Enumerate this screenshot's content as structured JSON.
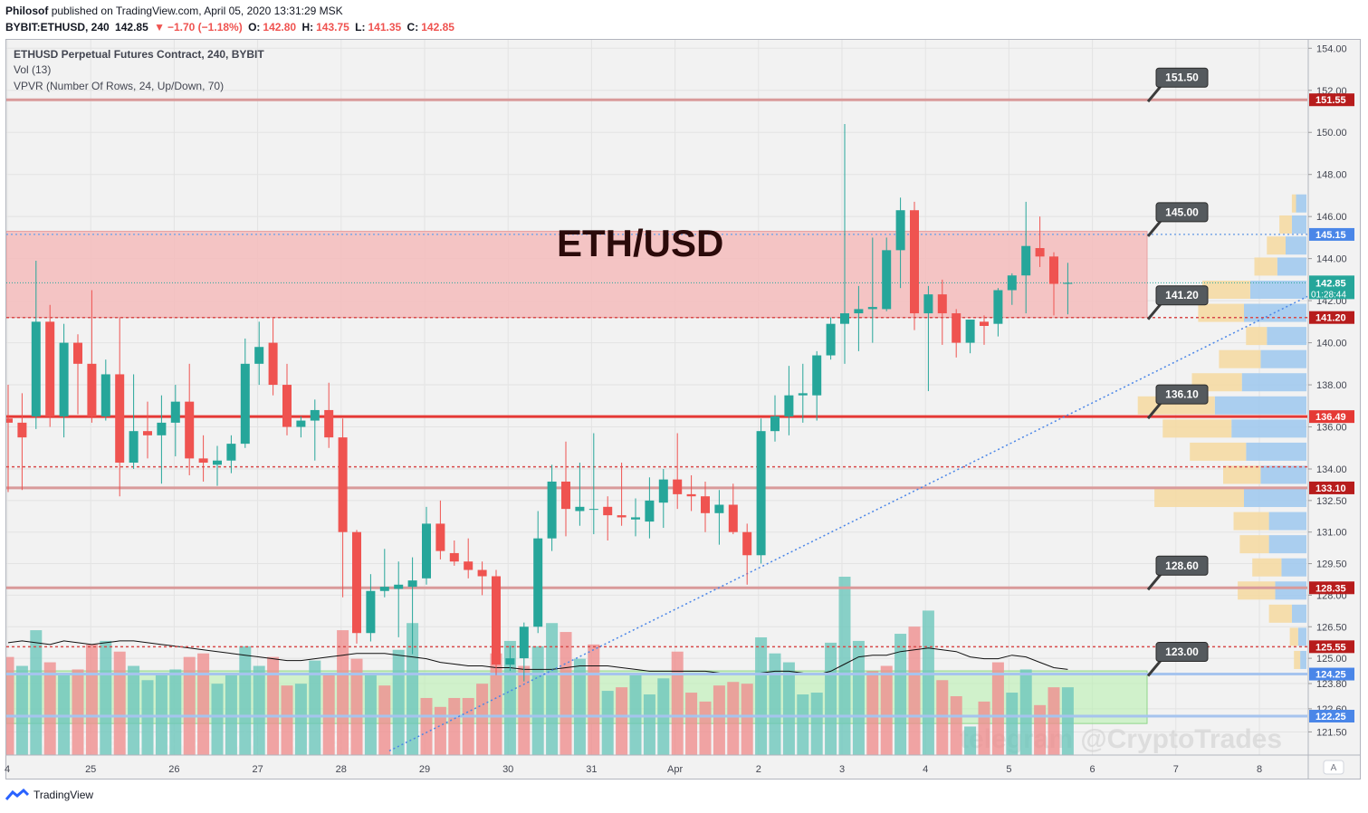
{
  "header": {
    "author": "Philosof",
    "published_text": "published on TradingView.com, April 05, 2020 13:31:29 MSK",
    "symbol": "BYBIT:ETHUSD, 240",
    "last": "142.85",
    "change_arrow": "▼",
    "change": "−1.70 (−1.18%)",
    "o_label": "O:",
    "o": "142.80",
    "h_label": "H:",
    "h": "143.75",
    "l_label": "L:",
    "l": "141.35",
    "c_label": "C:",
    "c": "142.85"
  },
  "legend": {
    "title": "ETHUSD Perpetual Futures Contract, 240, BYBIT",
    "vol": "Vol (13)",
    "vpvr": "VPVR (Number Of Rows, 24, Up/Down, 70)"
  },
  "watermark_title": "ETH/USD",
  "watermark_telegram": "telegram @CryptoTrades",
  "footer": {
    "brand": "TradingView"
  },
  "colors": {
    "up": "#26a69a",
    "down": "#ef5350",
    "zone": "#f4bcbc",
    "volume_zone": "#b9f0b0",
    "axis_red": "#b71c1c",
    "axis_blue": "#4a86e8"
  },
  "chart_data": {
    "type": "candlestick",
    "title": "ETHUSD Perpetual Futures Contract, 240, BYBIT",
    "x_ticks": [
      "4",
      "25",
      "26",
      "27",
      "28",
      "29",
      "30",
      "31",
      "Apr",
      "2",
      "3",
      "4",
      "5",
      "6",
      "7",
      "8"
    ],
    "y_ticks": [
      "154.00",
      "152.00",
      "150.00",
      "148.00",
      "146.00",
      "144.00",
      "142.00",
      "140.00",
      "138.00",
      "136.00",
      "134.00",
      "132.50",
      "131.00",
      "129.50",
      "128.00",
      "126.50",
      "125.00",
      "123.80",
      "122.60",
      "121.50"
    ],
    "y_range": [
      120.4,
      154.4
    ],
    "candles": [
      {
        "o": 136.4,
        "h": 138.0,
        "l": 132.9,
        "c": 136.2
      },
      {
        "o": 136.2,
        "h": 137.6,
        "l": 133.0,
        "c": 135.5
      },
      {
        "o": 136.5,
        "h": 143.9,
        "l": 135.9,
        "c": 141.0
      },
      {
        "o": 141.0,
        "h": 141.8,
        "l": 136.0,
        "c": 136.5
      },
      {
        "o": 136.5,
        "h": 140.9,
        "l": 135.5,
        "c": 140.0
      },
      {
        "o": 140.0,
        "h": 140.4,
        "l": 136.6,
        "c": 139.0
      },
      {
        "o": 139.0,
        "h": 142.5,
        "l": 136.2,
        "c": 136.5
      },
      {
        "o": 136.5,
        "h": 139.2,
        "l": 136.3,
        "c": 138.5
      },
      {
        "o": 138.5,
        "h": 141.2,
        "l": 132.7,
        "c": 134.3
      },
      {
        "o": 134.3,
        "h": 138.5,
        "l": 134.0,
        "c": 135.8
      },
      {
        "o": 135.8,
        "h": 137.2,
        "l": 134.5,
        "c": 135.6
      },
      {
        "o": 135.6,
        "h": 137.5,
        "l": 133.3,
        "c": 136.2
      },
      {
        "o": 136.2,
        "h": 138.0,
        "l": 134.6,
        "c": 137.2
      },
      {
        "o": 137.2,
        "h": 139.0,
        "l": 133.7,
        "c": 134.5
      },
      {
        "o": 134.5,
        "h": 135.6,
        "l": 133.4,
        "c": 134.3
      },
      {
        "o": 134.2,
        "h": 135.1,
        "l": 133.2,
        "c": 134.4
      },
      {
        "o": 134.4,
        "h": 135.6,
        "l": 133.8,
        "c": 135.2
      },
      {
        "o": 135.2,
        "h": 140.2,
        "l": 135.0,
        "c": 139.0
      },
      {
        "o": 139.0,
        "h": 141.0,
        "l": 138.0,
        "c": 139.8
      },
      {
        "o": 140.0,
        "h": 141.2,
        "l": 137.5,
        "c": 138.0
      },
      {
        "o": 138.0,
        "h": 139.0,
        "l": 135.6,
        "c": 136.0
      },
      {
        "o": 136.0,
        "h": 136.5,
        "l": 135.5,
        "c": 136.3
      },
      {
        "o": 136.3,
        "h": 137.3,
        "l": 134.4,
        "c": 136.8
      },
      {
        "o": 136.8,
        "h": 138.1,
        "l": 135.0,
        "c": 135.5
      },
      {
        "o": 135.5,
        "h": 136.4,
        "l": 127.9,
        "c": 131.0
      },
      {
        "o": 131.0,
        "h": 131.1,
        "l": 125.7,
        "c": 126.2
      },
      {
        "o": 126.2,
        "h": 129.0,
        "l": 125.8,
        "c": 128.2
      },
      {
        "o": 128.2,
        "h": 130.2,
        "l": 127.9,
        "c": 128.4
      },
      {
        "o": 128.3,
        "h": 129.6,
        "l": 126.0,
        "c": 128.5
      },
      {
        "o": 128.4,
        "h": 129.8,
        "l": 125.2,
        "c": 128.7
      },
      {
        "o": 128.8,
        "h": 132.2,
        "l": 128.5,
        "c": 131.4
      },
      {
        "o": 131.4,
        "h": 132.5,
        "l": 129.7,
        "c": 130.1
      },
      {
        "o": 130.0,
        "h": 130.6,
        "l": 129.4,
        "c": 129.6
      },
      {
        "o": 129.6,
        "h": 130.7,
        "l": 128.8,
        "c": 129.2
      },
      {
        "o": 129.2,
        "h": 129.6,
        "l": 128.0,
        "c": 128.9
      },
      {
        "o": 128.9,
        "h": 129.2,
        "l": 124.2,
        "c": 124.7
      },
      {
        "o": 124.7,
        "h": 125.6,
        "l": 124.4,
        "c": 125.0
      },
      {
        "o": 125.0,
        "h": 126.7,
        "l": 123.9,
        "c": 126.5
      },
      {
        "o": 126.5,
        "h": 132.0,
        "l": 126.2,
        "c": 130.7
      },
      {
        "o": 130.7,
        "h": 134.2,
        "l": 130.1,
        "c": 133.4
      },
      {
        "o": 133.4,
        "h": 135.3,
        "l": 130.8,
        "c": 132.1
      },
      {
        "o": 132.0,
        "h": 134.3,
        "l": 131.3,
        "c": 132.2
      },
      {
        "o": 132.1,
        "h": 135.7,
        "l": 130.9,
        "c": 132.1
      },
      {
        "o": 132.2,
        "h": 132.7,
        "l": 130.6,
        "c": 131.8
      },
      {
        "o": 131.8,
        "h": 134.3,
        "l": 131.3,
        "c": 131.7
      },
      {
        "o": 131.6,
        "h": 132.6,
        "l": 130.8,
        "c": 131.7
      },
      {
        "o": 131.5,
        "h": 133.6,
        "l": 130.7,
        "c": 132.5
      },
      {
        "o": 132.4,
        "h": 134.0,
        "l": 131.2,
        "c": 133.5
      },
      {
        "o": 133.5,
        "h": 135.7,
        "l": 132.1,
        "c": 132.8
      },
      {
        "o": 132.8,
        "h": 133.7,
        "l": 132.0,
        "c": 132.7
      },
      {
        "o": 132.7,
        "h": 133.4,
        "l": 131.0,
        "c": 131.9
      },
      {
        "o": 131.9,
        "h": 133.0,
        "l": 130.4,
        "c": 132.3
      },
      {
        "o": 132.3,
        "h": 133.3,
        "l": 130.9,
        "c": 131.0
      },
      {
        "o": 131.0,
        "h": 131.4,
        "l": 128.5,
        "c": 129.9
      },
      {
        "o": 129.9,
        "h": 136.4,
        "l": 129.5,
        "c": 135.8
      },
      {
        "o": 135.8,
        "h": 137.5,
        "l": 135.3,
        "c": 136.5
      },
      {
        "o": 136.5,
        "h": 138.9,
        "l": 135.6,
        "c": 137.5
      },
      {
        "o": 137.5,
        "h": 139.0,
        "l": 136.2,
        "c": 137.6
      },
      {
        "o": 137.5,
        "h": 139.6,
        "l": 136.3,
        "c": 139.4
      },
      {
        "o": 139.4,
        "h": 141.2,
        "l": 139.2,
        "c": 140.9
      },
      {
        "o": 140.9,
        "h": 150.4,
        "l": 139.0,
        "c": 141.4
      },
      {
        "o": 141.4,
        "h": 142.7,
        "l": 139.6,
        "c": 141.6
      },
      {
        "o": 141.6,
        "h": 145.0,
        "l": 140.0,
        "c": 141.7
      },
      {
        "o": 141.6,
        "h": 145.0,
        "l": 141.5,
        "c": 144.4
      },
      {
        "o": 144.4,
        "h": 146.9,
        "l": 142.6,
        "c": 146.3
      },
      {
        "o": 146.3,
        "h": 146.7,
        "l": 140.6,
        "c": 141.4
      },
      {
        "o": 141.4,
        "h": 142.7,
        "l": 137.7,
        "c": 142.3
      },
      {
        "o": 142.3,
        "h": 143.0,
        "l": 139.9,
        "c": 141.4
      },
      {
        "o": 141.4,
        "h": 141.6,
        "l": 139.3,
        "c": 140.0
      },
      {
        "o": 140.0,
        "h": 141.0,
        "l": 139.5,
        "c": 141.1
      },
      {
        "o": 141.0,
        "h": 141.3,
        "l": 139.9,
        "c": 140.8
      },
      {
        "o": 140.9,
        "h": 142.6,
        "l": 140.3,
        "c": 142.5
      },
      {
        "o": 142.5,
        "h": 143.3,
        "l": 141.8,
        "c": 143.2
      },
      {
        "o": 143.2,
        "h": 146.7,
        "l": 141.4,
        "c": 144.6
      },
      {
        "o": 144.5,
        "h": 146.0,
        "l": 143.6,
        "c": 144.1
      },
      {
        "o": 144.1,
        "h": 144.3,
        "l": 141.3,
        "c": 142.8
      },
      {
        "o": 142.8,
        "h": 143.8,
        "l": 141.35,
        "c": 142.85
      }
    ],
    "volume": [
      {
        "v": 0.55,
        "up": false
      },
      {
        "v": 0.5,
        "up": true
      },
      {
        "v": 0.7,
        "up": true
      },
      {
        "v": 0.52,
        "up": false
      },
      {
        "v": 0.45,
        "up": true
      },
      {
        "v": 0.48,
        "up": false
      },
      {
        "v": 0.62,
        "up": false
      },
      {
        "v": 0.64,
        "up": true
      },
      {
        "v": 0.58,
        "up": false
      },
      {
        "v": 0.5,
        "up": true
      },
      {
        "v": 0.42,
        "up": true
      },
      {
        "v": 0.46,
        "up": true
      },
      {
        "v": 0.48,
        "up": true
      },
      {
        "v": 0.55,
        "up": false
      },
      {
        "v": 0.57,
        "up": false
      },
      {
        "v": 0.4,
        "up": true
      },
      {
        "v": 0.45,
        "up": true
      },
      {
        "v": 0.61,
        "up": true
      },
      {
        "v": 0.5,
        "up": true
      },
      {
        "v": 0.55,
        "up": false
      },
      {
        "v": 0.39,
        "up": false
      },
      {
        "v": 0.4,
        "up": true
      },
      {
        "v": 0.53,
        "up": true
      },
      {
        "v": 0.45,
        "up": false
      },
      {
        "v": 0.7,
        "up": false
      },
      {
        "v": 0.54,
        "up": false
      },
      {
        "v": 0.46,
        "up": true
      },
      {
        "v": 0.39,
        "up": false
      },
      {
        "v": 0.59,
        "up": true
      },
      {
        "v": 0.74,
        "up": true
      },
      {
        "v": 0.32,
        "up": false
      },
      {
        "v": 0.27,
        "up": false
      },
      {
        "v": 0.32,
        "up": false
      },
      {
        "v": 0.32,
        "up": false
      },
      {
        "v": 0.4,
        "up": false
      },
      {
        "v": 0.57,
        "up": false
      },
      {
        "v": 0.64,
        "up": true
      },
      {
        "v": 0.5,
        "up": false
      },
      {
        "v": 0.61,
        "up": true
      },
      {
        "v": 0.74,
        "up": true
      },
      {
        "v": 0.69,
        "up": false
      },
      {
        "v": 0.54,
        "up": true
      },
      {
        "v": 0.62,
        "up": false
      },
      {
        "v": 0.36,
        "up": true
      },
      {
        "v": 0.38,
        "up": false
      },
      {
        "v": 0.45,
        "up": true
      },
      {
        "v": 0.34,
        "up": true
      },
      {
        "v": 0.43,
        "up": true
      },
      {
        "v": 0.58,
        "up": false
      },
      {
        "v": 0.35,
        "up": false
      },
      {
        "v": 0.3,
        "up": false
      },
      {
        "v": 0.39,
        "up": false
      },
      {
        "v": 0.41,
        "up": false
      },
      {
        "v": 0.4,
        "up": false
      },
      {
        "v": 0.66,
        "up": true
      },
      {
        "v": 0.57,
        "up": true
      },
      {
        "v": 0.52,
        "up": true
      },
      {
        "v": 0.34,
        "up": true
      },
      {
        "v": 0.35,
        "up": true
      },
      {
        "v": 0.63,
        "up": true
      },
      {
        "v": 1.0,
        "up": true
      },
      {
        "v": 0.64,
        "up": true
      },
      {
        "v": 0.47,
        "up": false
      },
      {
        "v": 0.5,
        "up": false
      },
      {
        "v": 0.68,
        "up": true
      },
      {
        "v": 0.72,
        "up": false
      },
      {
        "v": 0.81,
        "up": true
      },
      {
        "v": 0.42,
        "up": false
      },
      {
        "v": 0.33,
        "up": false
      },
      {
        "v": 0.16,
        "up": true
      },
      {
        "v": 0.3,
        "up": false
      },
      {
        "v": 0.52,
        "up": false
      },
      {
        "v": 0.35,
        "up": true
      },
      {
        "v": 0.48,
        "up": true
      },
      {
        "v": 0.28,
        "up": false
      },
      {
        "v": 0.38,
        "up": false
      },
      {
        "v": 0.38,
        "up": true
      }
    ],
    "volume_ma": [
      0.63,
      0.64,
      0.63,
      0.62,
      0.64,
      0.63,
      0.62,
      0.63,
      0.64,
      0.64,
      0.63,
      0.62,
      0.61,
      0.6,
      0.59,
      0.58,
      0.57,
      0.56,
      0.55,
      0.54,
      0.53,
      0.53,
      0.54,
      0.55,
      0.56,
      0.57,
      0.57,
      0.57,
      0.56,
      0.55,
      0.54,
      0.52,
      0.51,
      0.5,
      0.5,
      0.49,
      0.49,
      0.48,
      0.48,
      0.48,
      0.49,
      0.5,
      0.5,
      0.5,
      0.49,
      0.48,
      0.47,
      0.47,
      0.47,
      0.47,
      0.47,
      0.46,
      0.45,
      0.45,
      0.46,
      0.47,
      0.47,
      0.46,
      0.45,
      0.47,
      0.51,
      0.55,
      0.56,
      0.56,
      0.58,
      0.59,
      0.6,
      0.59,
      0.58,
      0.55,
      0.54,
      0.54,
      0.56,
      0.55,
      0.52,
      0.49,
      0.48
    ],
    "levels": [
      {
        "price": 151.55,
        "style": "solid",
        "color": "#d99a9a",
        "label": "151.50",
        "axis_label": "151.55",
        "axis_color": "#b71c1c"
      },
      {
        "price": 145.15,
        "style": "dotted",
        "color": "#7aa7e6",
        "label": "145.00",
        "axis_label": "145.15",
        "axis_color": "#4a86e8"
      },
      {
        "price": 141.2,
        "style": "dashed",
        "color": "#d84a4a",
        "label": "141.20",
        "axis_label": "141.20",
        "axis_color": "#b71c1c"
      },
      {
        "price": 136.49,
        "style": "solid",
        "color": "#e53935",
        "label": "136.10",
        "axis_label": "136.49",
        "axis_color": "#e53935"
      },
      {
        "price": 134.1,
        "style": "dashed",
        "color": "#d84a4a",
        "label": "",
        "axis_label": "",
        "axis_color": ""
      },
      {
        "price": 133.1,
        "style": "solid",
        "color": "#d99a9a",
        "label": "",
        "axis_label": "133.10",
        "axis_color": "#b71c1c"
      },
      {
        "price": 128.35,
        "style": "solid",
        "color": "#d99a9a",
        "label": "128.60",
        "axis_label": "128.35",
        "axis_color": "#b71c1c"
      },
      {
        "price": 125.55,
        "style": "dashed",
        "color": "#d84a4a",
        "label": "",
        "axis_label": "125.55",
        "axis_color": "#b71c1c"
      },
      {
        "price": 124.25,
        "style": "solid",
        "color": "#a6c4ee",
        "label": "123.00",
        "axis_label": "124.25",
        "axis_color": "#4a86e8"
      },
      {
        "price": 122.25,
        "style": "solid",
        "color": "#a6c4ee",
        "label": "",
        "axis_label": "122.25",
        "axis_color": "#4a86e8"
      }
    ],
    "zone": {
      "top": 145.3,
      "bottom": 141.2
    },
    "volume_zone": {
      "top": 124.4,
      "bottom": 121.9
    },
    "trendline": {
      "from_price": 120.6,
      "to_price": 142.2
    },
    "current_price": {
      "label": "142.85",
      "countdown": "01:28:44",
      "color": "#26a69a"
    },
    "vpvr": [
      {
        "price": 146.6,
        "up": 0.05,
        "dn": 0.02
      },
      {
        "price": 145.6,
        "up": 0.07,
        "dn": 0.06
      },
      {
        "price": 144.6,
        "up": 0.1,
        "dn": 0.09
      },
      {
        "price": 143.6,
        "up": 0.14,
        "dn": 0.11
      },
      {
        "price": 142.5,
        "up": 0.27,
        "dn": 0.23
      },
      {
        "price": 141.4,
        "up": 0.3,
        "dn": 0.22
      },
      {
        "price": 140.3,
        "up": 0.19,
        "dn": 0.1
      },
      {
        "price": 139.2,
        "up": 0.22,
        "dn": 0.2
      },
      {
        "price": 138.1,
        "up": 0.31,
        "dn": 0.24
      },
      {
        "price": 137.0,
        "up": 0.44,
        "dn": 0.37
      },
      {
        "price": 135.9,
        "up": 0.36,
        "dn": 0.33
      },
      {
        "price": 134.8,
        "up": 0.29,
        "dn": 0.27
      },
      {
        "price": 133.7,
        "up": 0.22,
        "dn": 0.18
      },
      {
        "price": 132.6,
        "up": 0.3,
        "dn": 0.43
      },
      {
        "price": 131.5,
        "up": 0.18,
        "dn": 0.17
      },
      {
        "price": 130.4,
        "up": 0.18,
        "dn": 0.14
      },
      {
        "price": 129.3,
        "up": 0.12,
        "dn": 0.14
      },
      {
        "price": 128.2,
        "up": 0.15,
        "dn": 0.18
      },
      {
        "price": 127.1,
        "up": 0.07,
        "dn": 0.11
      },
      {
        "price": 126.0,
        "up": 0.04,
        "dn": 0.04
      },
      {
        "price": 124.9,
        "up": 0.03,
        "dn": 0.03
      }
    ]
  }
}
